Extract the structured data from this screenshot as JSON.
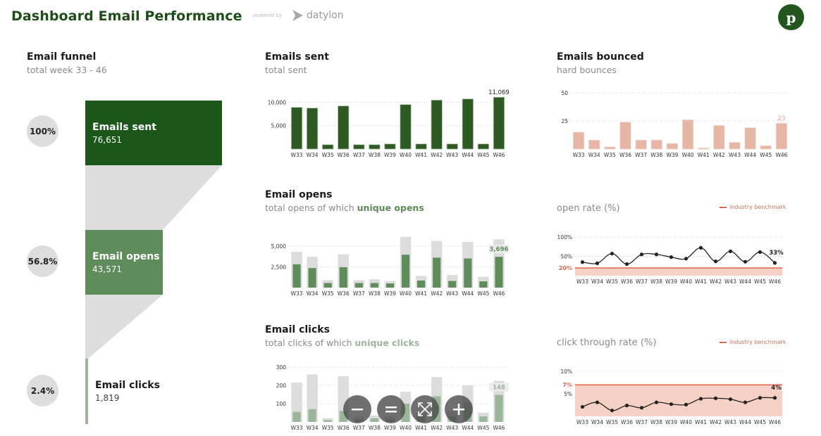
{
  "header": {
    "title": "Dashboard Email Performance",
    "powered_by": "powered by",
    "brand": "datylon",
    "avatar_initial": "p"
  },
  "colors": {
    "dark_green": "#1a5718",
    "bar_green": "#2d5a23",
    "mid_green": "#5f8c5b",
    "light_green": "#9bb59a",
    "grey_total": "#dcdcdc",
    "bounce": "#e5b5a6",
    "benchmark": "#e0654a",
    "benchmark_fill": "#f5d0c5"
  },
  "funnel": {
    "title": "Email funnel",
    "subtitle": "total week 33 - 46",
    "stages": [
      {
        "label": "Emails sent",
        "value": "76,651",
        "percent": "100%"
      },
      {
        "label": "Email opens",
        "value": "43,571",
        "percent": "56.8%"
      },
      {
        "label": "Email clicks",
        "value": "1,819",
        "percent": "2.4%"
      }
    ]
  },
  "emails_sent": {
    "title": "Emails sent",
    "subtitle": "total sent",
    "last_label": "11,069"
  },
  "emails_bounced": {
    "title": "Emails bounced",
    "subtitle": "hard bounces",
    "last_label": "23"
  },
  "email_opens": {
    "title": "Email opens",
    "subtitle_prefix": "total opens of which ",
    "subtitle_highlight": "unique opens",
    "last_label": "3,696"
  },
  "email_clicks": {
    "title": "Email clicks",
    "subtitle_prefix": "total clicks of which ",
    "subtitle_highlight": "unique clicks",
    "last_label": "148"
  },
  "open_rate": {
    "title": "open rate (%)",
    "legend": "industry benchmark",
    "benchmark_label": "20%",
    "last_label": "33%"
  },
  "click_rate": {
    "title": "click through rate (%)",
    "legend": "industry benchmark",
    "benchmark_label": "7%",
    "last_label": "4%"
  },
  "zoom_controls": {
    "zoom_out": "zoom-out",
    "reset": "reset",
    "fit": "fit",
    "zoom_in": "zoom-in"
  },
  "chart_data": [
    {
      "type": "bar",
      "title": "Emails sent",
      "subtitle": "total sent",
      "categories": [
        "W33",
        "W34",
        "W35",
        "W36",
        "W37",
        "W38",
        "W39",
        "W40",
        "W41",
        "W42",
        "W43",
        "W44",
        "W45",
        "W46"
      ],
      "values": [
        8900,
        8750,
        940,
        9200,
        940,
        940,
        1100,
        9500,
        1100,
        10450,
        1100,
        10700,
        1100,
        11069
      ],
      "yticks": [
        "5,000",
        "10,000"
      ],
      "ylim": [
        0,
        12000
      ],
      "grid": true
    },
    {
      "type": "bar",
      "title": "Emails bounced",
      "subtitle": "hard bounces",
      "categories": [
        "W33",
        "W34",
        "W35",
        "W36",
        "W37",
        "W38",
        "W39",
        "W40",
        "W41",
        "W42",
        "W43",
        "W44",
        "W45",
        "W46"
      ],
      "values": [
        15,
        8,
        2,
        24,
        8,
        8,
        5,
        26,
        1,
        21,
        6,
        19,
        3,
        23
      ],
      "yticks": [
        "25",
        "50"
      ],
      "ylim": [
        0,
        50
      ],
      "grid": true
    },
    {
      "type": "bar",
      "title": "Email opens",
      "subtitle": "total opens of which unique opens",
      "categories": [
        "W33",
        "W34",
        "W35",
        "W36",
        "W37",
        "W38",
        "W39",
        "W40",
        "W41",
        "W42",
        "W43",
        "W44",
        "W45",
        "W46"
      ],
      "series": [
        {
          "name": "total opens",
          "values": [
            4300,
            3700,
            900,
            4000,
            900,
            1000,
            800,
            6100,
            1400,
            5600,
            1500,
            5500,
            1300,
            5800
          ]
        },
        {
          "name": "unique opens",
          "values": [
            2800,
            2350,
            550,
            2450,
            550,
            550,
            500,
            3950,
            850,
            3600,
            800,
            3500,
            750,
            3696
          ]
        }
      ],
      "yticks": [
        "2,500",
        "5,000"
      ],
      "ylim": [
        0,
        6500
      ],
      "grid": true
    },
    {
      "type": "bar",
      "title": "Email clicks",
      "subtitle": "total clicks of which unique clicks",
      "categories": [
        "W33",
        "W34",
        "W35",
        "W36",
        "W37",
        "W38",
        "W39",
        "W40",
        "W41",
        "W42",
        "W43",
        "W44",
        "W45",
        "W46"
      ],
      "series": [
        {
          "name": "total clicks",
          "values": [
            215,
            260,
            20,
            250,
            30,
            35,
            30,
            165,
            50,
            245,
            60,
            200,
            50,
            225
          ]
        },
        {
          "name": "unique clicks",
          "values": [
            55,
            70,
            10,
            60,
            15,
            20,
            15,
            100,
            35,
            140,
            30,
            105,
            30,
            148
          ]
        }
      ],
      "yticks": [
        "100",
        "200",
        "300"
      ],
      "ylim": [
        0,
        300
      ],
      "grid": true
    },
    {
      "type": "line",
      "title": "open rate (%)",
      "categories": [
        "W33",
        "W34",
        "W35",
        "W36",
        "W37",
        "W38",
        "W39",
        "W40",
        "W41",
        "W42",
        "W43",
        "W44",
        "W45",
        "W46"
      ],
      "values": [
        35,
        32,
        57,
        30,
        55,
        55,
        48,
        44,
        72,
        37,
        63,
        36,
        61,
        33
      ],
      "benchmark": {
        "name": "industry benchmark",
        "value": 20
      },
      "yticks": [
        "20%",
        "50%",
        "100%"
      ],
      "ylim": [
        0,
        100
      ],
      "grid": true,
      "legend_position": "top-right"
    },
    {
      "type": "line",
      "title": "click through rate (%)",
      "categories": [
        "W33",
        "W34",
        "W35",
        "W36",
        "W37",
        "W38",
        "W39",
        "W40",
        "W41",
        "W42",
        "W43",
        "W44",
        "W45",
        "W46"
      ],
      "values": [
        2.1,
        3.1,
        1.3,
        2.4,
        1.9,
        3.1,
        2.7,
        2.6,
        3.9,
        4.0,
        3.8,
        3.1,
        4.1,
        4.1
      ],
      "benchmark": {
        "name": "industry benchmark",
        "value": 7
      },
      "yticks": [
        "5%",
        "7%",
        "10%"
      ],
      "ylim": [
        0,
        10
      ],
      "grid": true,
      "legend_position": "top-right"
    }
  ]
}
